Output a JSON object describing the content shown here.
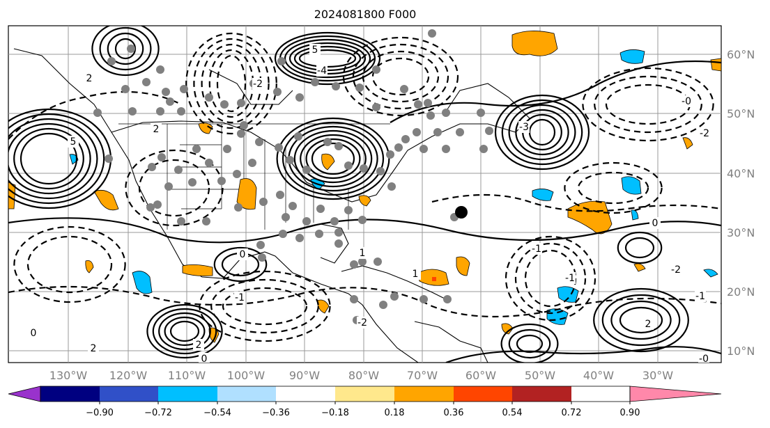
{
  "title": "2024081800 F000",
  "map": {
    "lon_labels": [
      "130°W",
      "120°W",
      "110°W",
      "100°W",
      "90°W",
      "80°W",
      "70°W",
      "60°W",
      "50°W",
      "40°W",
      "30°W"
    ],
    "lat_labels": [
      "60°N",
      "50°N",
      "40°N",
      "30°N",
      "20°N",
      "10°N"
    ],
    "contour_labels": [
      "5",
      "-4",
      "2",
      "-2",
      "5",
      "-2",
      "-3",
      "2",
      "-1",
      "0",
      "-1",
      "-2",
      "2",
      "0",
      "1",
      "-1",
      "0",
      "2",
      "-0",
      "0",
      "-2",
      "1",
      "2",
      "-1",
      "-0"
    ]
  },
  "colorbar": {
    "colors": [
      "#9932cc",
      "#000080",
      "#3050c8",
      "#00bfff",
      "#b0e0ff",
      "#ffffff",
      "#ffe88c",
      "#ffa500",
      "#ff4500",
      "#b22222",
      "#ff88aa"
    ],
    "tick_labels": [
      "−0.90",
      "−0.72",
      "−0.54",
      "−0.36",
      "−0.18",
      "0.18",
      "0.36",
      "0.54",
      "0.72",
      "0.90"
    ]
  }
}
